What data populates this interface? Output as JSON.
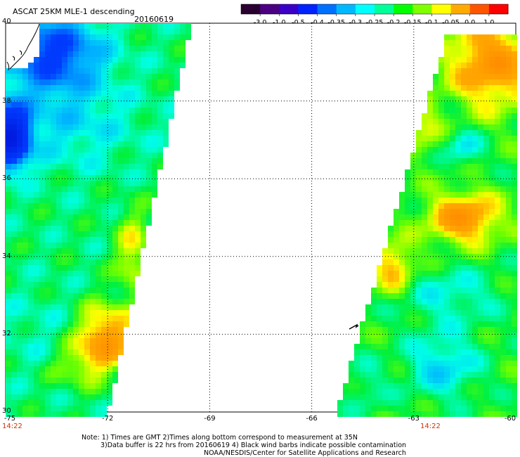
{
  "title": "ASCAT 25KM MLE-1 descending",
  "date": "20160619",
  "colorbar": {
    "labels": [
      "-3.0",
      "-1.0",
      "-0.5",
      "-0.4",
      "-0.35",
      "-0.3",
      "-0.25",
      "-0.2",
      "-0.15",
      "-0.1",
      "-0.05",
      "0.0",
      "1.0"
    ],
    "colors": [
      "#2a0030",
      "#4b0082",
      "#3a00c8",
      "#0022ff",
      "#0070ff",
      "#00b8ff",
      "#00ffff",
      "#00ff99",
      "#00ff00",
      "#80ff00",
      "#ffff00",
      "#ffaa00",
      "#ff5500",
      "#ff0000"
    ]
  },
  "axes": {
    "lat_labels": [
      "40",
      "38",
      "36",
      "34",
      "32",
      "30"
    ],
    "lon_labels": [
      "-75",
      "-72",
      "-69",
      "-66",
      "-63",
      "-60"
    ],
    "time_labels": [
      "14:22",
      "14:22"
    ]
  },
  "notes": [
    "Note: 1) Times are GMT 2)Times along bottom correspond to measurement at 35N",
    "3)Data buffer is 22 hrs from 20160619 4) Black wind barbs indicate possible contamination",
    "NOAA/NESDIS/Center for Satellite Applications and Research"
  ]
}
